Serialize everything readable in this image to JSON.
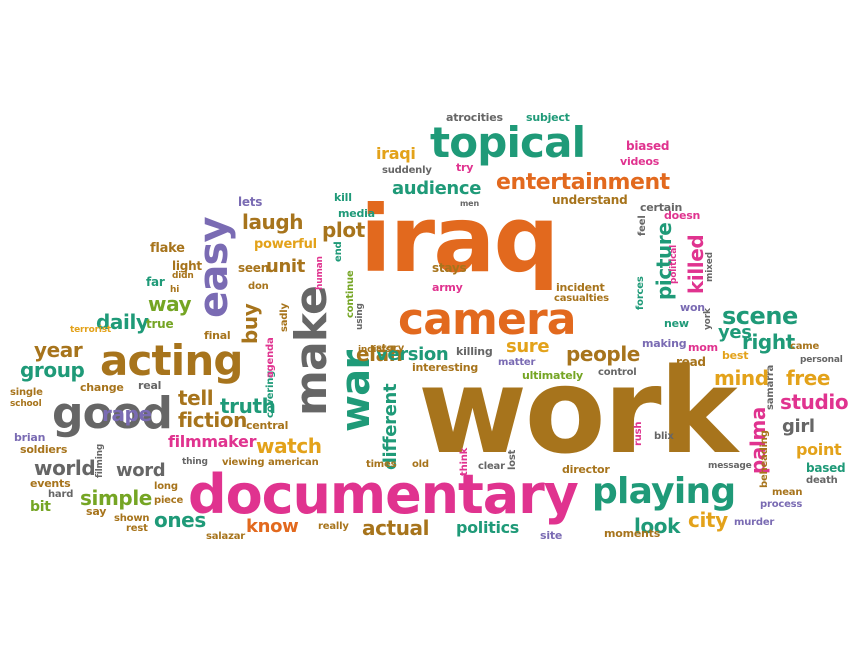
{
  "words": {
    "work": "work",
    "iraq": "iraq",
    "documentary": "documentary",
    "camera": "camera",
    "acting": "acting",
    "topical": "topical",
    "good": "good",
    "make": "make",
    "easy": "easy",
    "playing": "playing",
    "war": "war",
    "entertainment": "entertainment",
    "audience": "audience",
    "people": "people",
    "scene": "scene",
    "studio": "studio",
    "free": "free",
    "mind": "mind",
    "right": "right",
    "palma": "palma",
    "picture": "picture",
    "killed": "killed",
    "different": "different",
    "version": "version",
    "elah": "elah",
    "sure": "sure",
    "plot": "plot",
    "laugh": "laugh",
    "unit": "unit",
    "daily": "daily",
    "way": "way",
    "year": "year",
    "group": "group",
    "rape": "rape",
    "fiction": "fiction",
    "tell": "tell",
    "truth": "truth",
    "watch": "watch",
    "filmmaker": "filmmaker",
    "world": "world",
    "word": "word",
    "simple": "simple",
    "ones": "ones",
    "know": "know",
    "actual": "actual",
    "politics": "politics",
    "look": "look",
    "city": "city",
    "girl": "girl",
    "point": "point",
    "based": "based",
    "yes": "yes",
    "iraqi": "iraqi",
    "buy": "buy",
    "bit": "bit",
    "flake": "flake",
    "lets": "lets",
    "powerful": "powerful",
    "seen": "seen",
    "light": "light",
    "far": "far",
    "true": "true",
    "media": "media",
    "kill": "kill",
    "understand": "understand",
    "certain": "certain",
    "biased": "biased",
    "videos": "videos",
    "atrocities": "atrocities",
    "subject": "subject",
    "suddenly": "suddenly",
    "try": "try",
    "stays": "stays",
    "army": "army",
    "incident": "incident",
    "casualties": "casualties",
    "killing": "killing",
    "matter": "matter",
    "interesting": "interesting",
    "ultimately": "ultimately",
    "control": "control",
    "read": "read",
    "making": "making",
    "mom": "mom",
    "won": "won",
    "new": "new",
    "came": "came",
    "best": "best",
    "personal": "personal",
    "samarra": "samarra",
    "beheading": "beheading",
    "message": "message",
    "blix": "blix",
    "rush": "rush",
    "mean": "mean",
    "death": "death",
    "process": "process",
    "murder": "murder",
    "moments": "moments",
    "site": "site",
    "director": "director",
    "clear": "clear",
    "lost": "lost",
    "think": "think",
    "old": "old",
    "times": "times",
    "really": "really",
    "salazar": "salazar",
    "rest": "rest",
    "shown": "shown",
    "piece": "piece",
    "long": "long",
    "say": "say",
    "hard": "hard",
    "events": "events",
    "soldiers": "soldiers",
    "brian": "brian",
    "school": "school",
    "single": "single",
    "change": "change",
    "real": "real",
    "thing": "thing",
    "viewing": "viewing",
    "american": "american",
    "central": "central",
    "covering": "covering",
    "agenda": "agenda",
    "sadly": "sadly",
    "final": "final",
    "don": "don",
    "didn": "didn",
    "hi": "hi",
    "terrorist": "terrorist",
    "filming": "filming",
    "doesn": "doesn",
    "feel": "feel",
    "forces": "forces",
    "political": "political",
    "mixed": "mixed",
    "york": "york",
    "men": "men",
    "end": "end",
    "continue": "continue",
    "using": "using",
    "indicts": "indicts",
    "story": "story",
    "human": "human"
  },
  "palette": [
    "#e2691e",
    "#1f9a78",
    "#a7741c",
    "#7a6bb3",
    "#e0338f",
    "#75a524",
    "#e3a21a",
    "#666666"
  ]
}
